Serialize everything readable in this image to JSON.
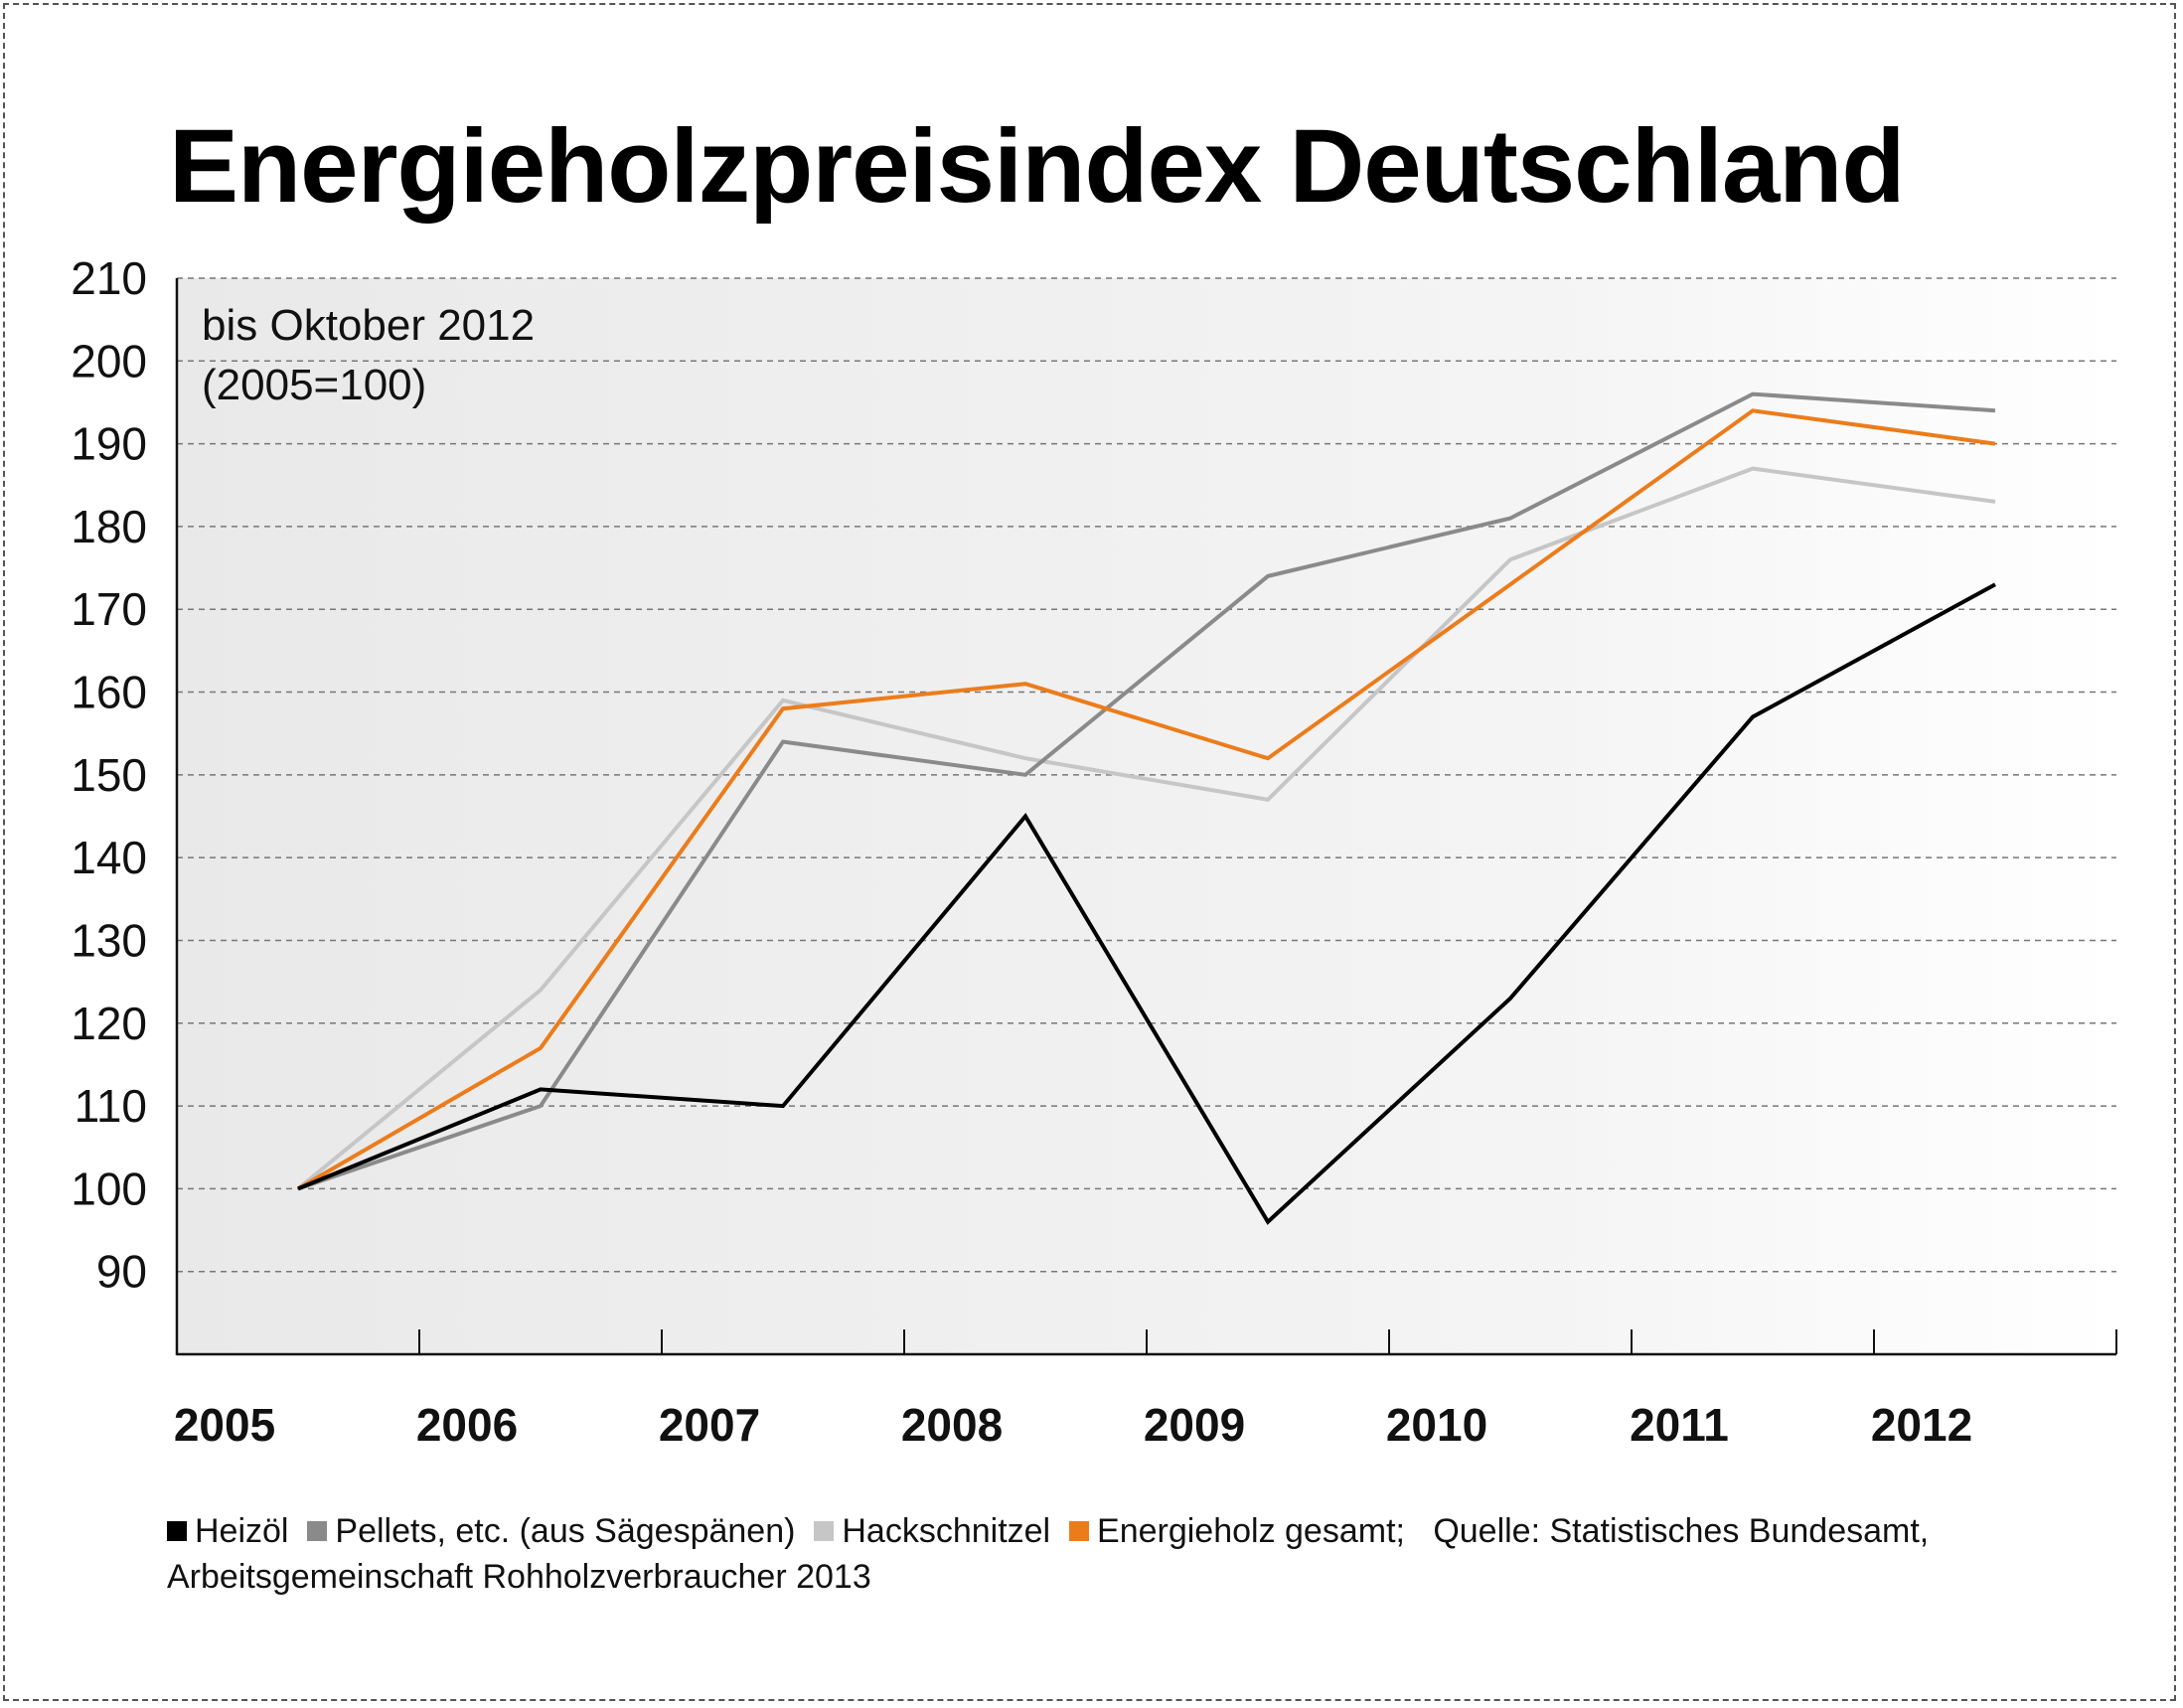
{
  "chart_data": {
    "type": "line",
    "title": "Energieholzpreisindex Deutschland",
    "subtitle_lines": [
      "bis Oktober 2012",
      "(2005=100)"
    ],
    "xlabel": "",
    "ylabel": "",
    "categories": [
      "2005",
      "2006",
      "2007",
      "2008",
      "2009",
      "2010",
      "2011",
      "2012"
    ],
    "y_ticks": [
      "210",
      "200",
      "190",
      "180",
      "170",
      "160",
      "150",
      "140",
      "130",
      "120",
      "110",
      "100",
      "90"
    ],
    "ylim": [
      80,
      210
    ],
    "grid": true,
    "x_points": [
      2005.5,
      2006.5,
      2007.5,
      2008.5,
      2009.5,
      2010.5,
      2011.5,
      2012.5
    ],
    "series": [
      {
        "name": "Hackschnitzel",
        "color": "#c6c6c6",
        "values": [
          100,
          124,
          159,
          152,
          147,
          176,
          187,
          183
        ]
      },
      {
        "name": "Pellets, etc. (aus Sägespänen)",
        "color": "#8a8a8a",
        "values": [
          100,
          110,
          154,
          150,
          174,
          181,
          196,
          194
        ]
      },
      {
        "name": "Energieholz gesamt",
        "color": "#ec7c1b",
        "values": [
          100,
          117,
          158,
          161,
          152,
          173,
          194,
          190
        ]
      },
      {
        "name": "Heizöl",
        "color": "#000000",
        "values": [
          100,
          112,
          110,
          145,
          96,
          123,
          157,
          173
        ]
      }
    ],
    "legend_placement": "bottom"
  },
  "legend": {
    "items": [
      {
        "label": "Heizöl",
        "color": "#000000"
      },
      {
        "label": "Pellets, etc. (aus Sägespänen)",
        "color": "#8a8a8a"
      },
      {
        "label": "Hackschnitzel",
        "color": "#c6c6c6"
      },
      {
        "label": "Energieholz gesamt;",
        "color": "#ec7c1b"
      }
    ],
    "source": "Quelle: Statistisches Bundesamt, Arbeitsgemeinschaft Rohholzverbraucher 2013"
  }
}
